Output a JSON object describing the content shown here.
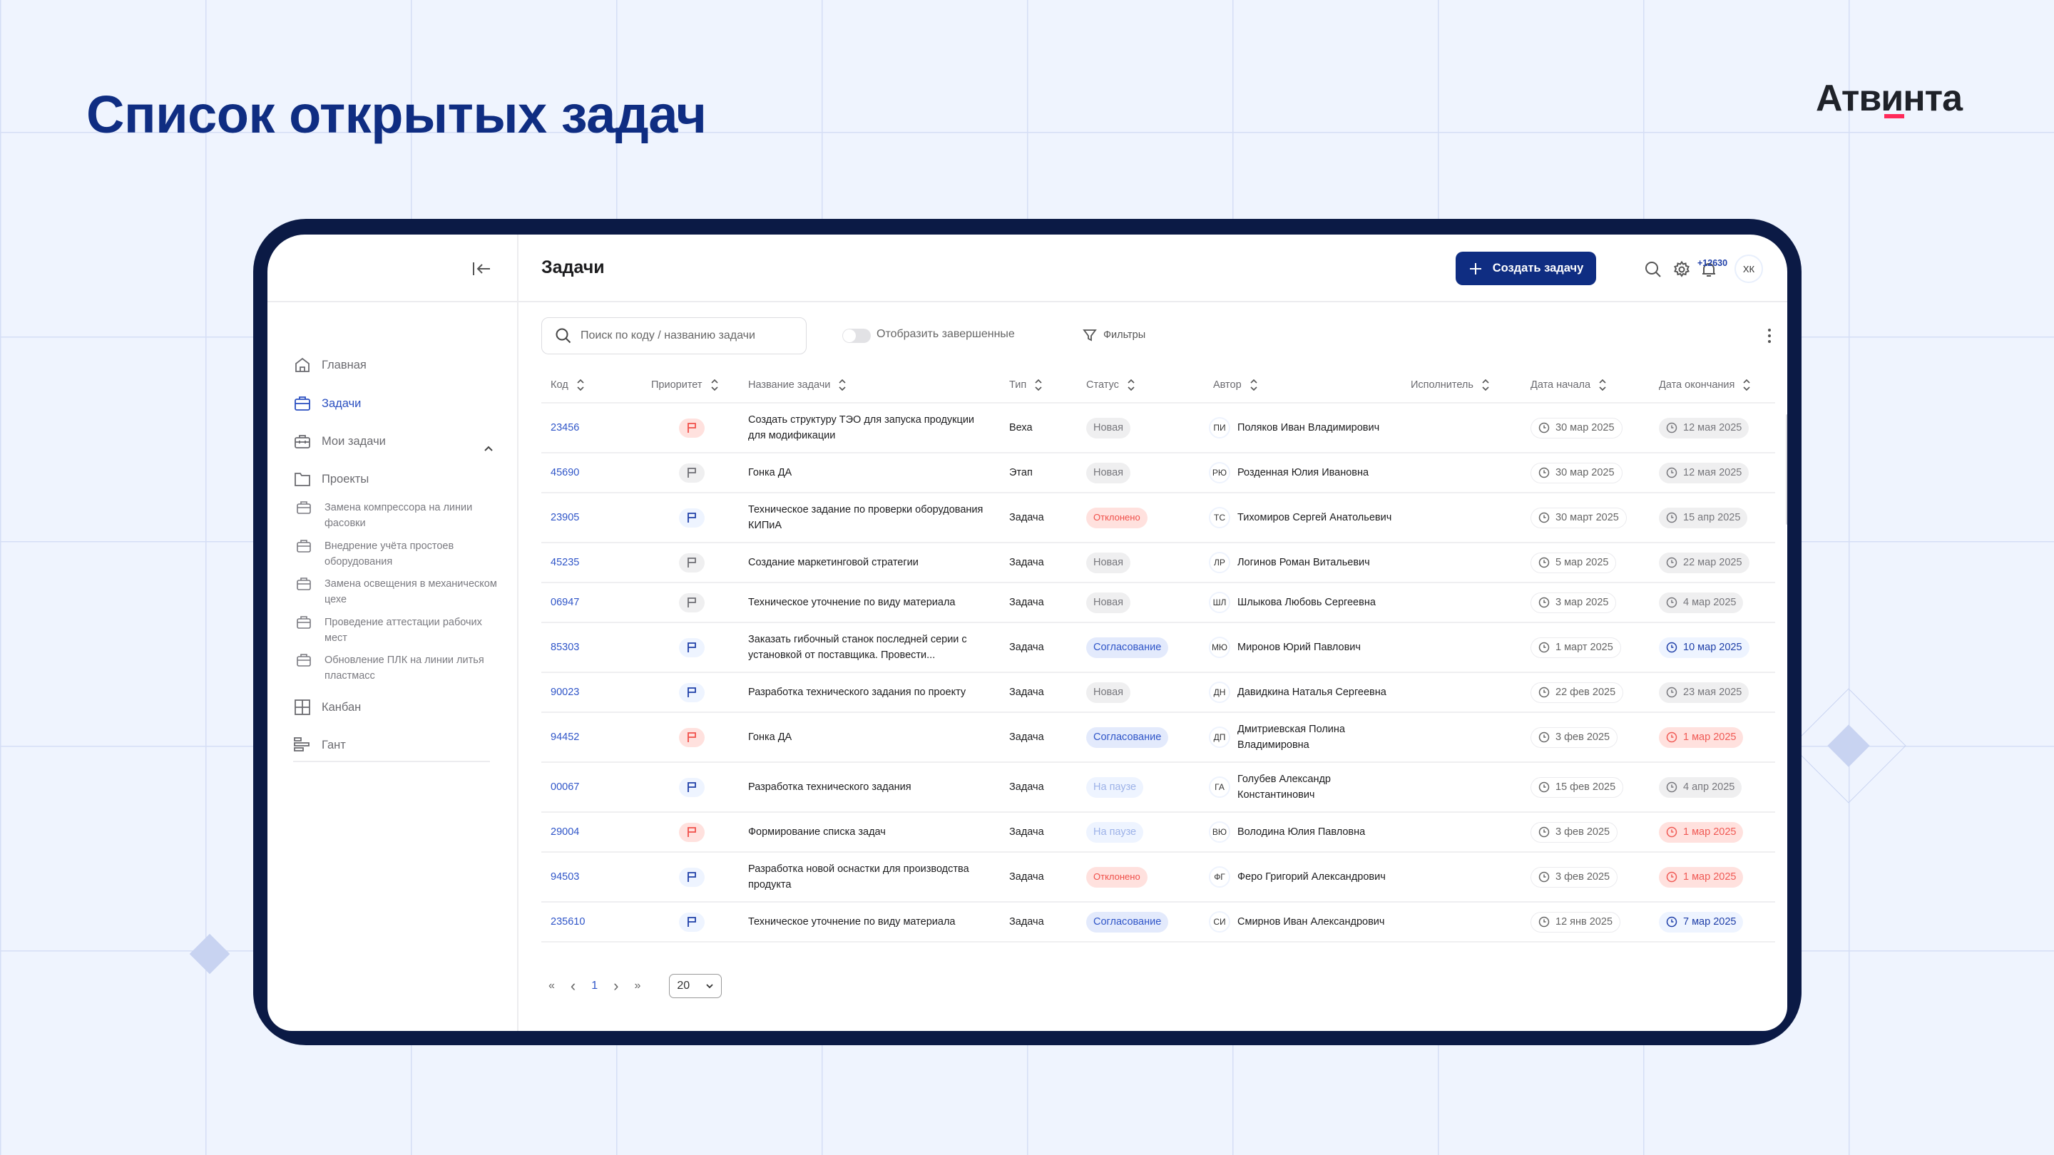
{
  "page": {
    "title": "Список открытых задач",
    "logo_text": "Атвинта"
  },
  "colors": {
    "brand_navy": "#0f2d82",
    "link_blue": "#2f55c8",
    "logo_accent": "#ff2a5a",
    "frame": "#0b1a45"
  },
  "sidebar": {
    "collapse_icon": "collapse-left-icon",
    "items": [
      {
        "label": "Главная",
        "icon": "home-icon"
      },
      {
        "label": "Задачи",
        "icon": "briefcase-icon",
        "active": true
      },
      {
        "label": "Мои задачи",
        "icon": "toolbox-icon"
      },
      {
        "label": "Проекты",
        "icon": "folder-icon",
        "expanded": true
      },
      {
        "label": "Канбан",
        "icon": "kanban-icon"
      },
      {
        "label": "Гант",
        "icon": "gantt-icon"
      }
    ],
    "projects": [
      "Замена компрессора на линии фасовки",
      "Внедрение учёта простоев оборудования",
      "Замена освещения в механическом цехе",
      "Проведение аттестации рабочих мест",
      "Обновление ПЛК на линии литья пластмасс"
    ]
  },
  "header": {
    "title": "Задачи",
    "create_label": "Создать задачу",
    "notifications_badge": "+12630",
    "avatar_initials": "ХК"
  },
  "toolbar": {
    "search_placeholder": "Поиск по коду / названию задачи",
    "toggle_label": "Отобразить завершенные",
    "toggle_on": false,
    "filters_label": "Фильтры"
  },
  "table": {
    "columns": [
      "Код",
      "Приоритет",
      "Название задачи",
      "Тип",
      "Статус",
      "Автор",
      "Исполнитель",
      "Дата начала",
      "Дата окончания"
    ],
    "rows": [
      {
        "code": "23456",
        "priority": "high",
        "name": "Создать структуру ТЭО для запуска продукции для модификации",
        "type": "Веха",
        "status": "Новая",
        "status_kind": "new",
        "author_initials": "ПИ",
        "author": "Поляков Иван Владимирович",
        "executor": "",
        "start": "30 мар 2025",
        "end": "12 мая 2025",
        "end_kind": "normal"
      },
      {
        "code": "45690",
        "priority": "low",
        "name": "Гонка ДА",
        "type": "Этап",
        "status": "Новая",
        "status_kind": "new",
        "author_initials": "РЮ",
        "author": "Розденная Юлия Ивановна",
        "executor": "",
        "start": "30 мар 2025",
        "end": "12 мая 2025",
        "end_kind": "normal"
      },
      {
        "code": "23905",
        "priority": "medium",
        "name": "Техническое задание по проверки оборудования КИПиА",
        "type": "Задача",
        "status": "Отклонено",
        "status_kind": "rejected",
        "author_initials": "ТС",
        "author": "Тихомиров Сергей Анатольевич",
        "executor": "",
        "start": "30 март  2025",
        "end": "15 апр  2025",
        "end_kind": "normal"
      },
      {
        "code": "45235",
        "priority": "low",
        "name": "Создание маркетинговой стратегии",
        "type": "Задача",
        "status": "Новая",
        "status_kind": "new",
        "author_initials": "ЛР",
        "author": "Логинов Роман Витальевич",
        "executor": "",
        "start": "5 мар 2025",
        "end": "22 мар 2025",
        "end_kind": "normal"
      },
      {
        "code": "06947",
        "priority": "low",
        "name": "Техническое уточнение по виду материала",
        "type": "Задача",
        "status": "Новая",
        "status_kind": "new",
        "author_initials": "ШЛ",
        "author": "Шлыкова Любовь Сергеевна",
        "executor": "",
        "start": "3 мар 2025",
        "end": "4 мар 2025",
        "end_kind": "normal"
      },
      {
        "code": "85303",
        "priority": "medium",
        "name": "Заказать гибочный станок последней серии с установкой от поставщика. Провести...",
        "type": "Задача",
        "status": "Согласование",
        "status_kind": "approval",
        "author_initials": "МЮ",
        "author": "Миронов Юрий Павлович",
        "executor": "",
        "start": "1 март  2025",
        "end": "10 мар 2025",
        "end_kind": "soon"
      },
      {
        "code": "90023",
        "priority": "medium",
        "name": "Разработка технического задания по проекту",
        "type": "Задача",
        "status": "Новая",
        "status_kind": "new",
        "author_initials": "ДН",
        "author": "Давидкина Наталья Сергеевна",
        "executor": "",
        "start": "22 фев 2025",
        "end": "23 мая 2025",
        "end_kind": "normal"
      },
      {
        "code": "94452",
        "priority": "high",
        "name": "Гонка ДА",
        "type": "Задача",
        "status": "Согласование",
        "status_kind": "approval",
        "author_initials": "ДП",
        "author": "Дмитриевская Полина Владимировна",
        "executor": "",
        "start": "3 фев 2025",
        "end": "1 мар 2025",
        "end_kind": "overdue"
      },
      {
        "code": "00067",
        "priority": "medium",
        "name": "Разработка технического задания",
        "type": "Задача",
        "status": "На паузе",
        "status_kind": "paused",
        "author_initials": "ГА",
        "author": "Голубев Александр Константинович",
        "executor": "",
        "start": "15 фев 2025",
        "end": "4 апр 2025",
        "end_kind": "normal"
      },
      {
        "code": "29004",
        "priority": "high",
        "name": "Формирование списка задач",
        "type": "Задача",
        "status": "На паузе",
        "status_kind": "paused",
        "author_initials": "ВЮ",
        "author": "Володина Юлия Павловна",
        "executor": "",
        "start": "3 фев 2025",
        "end": "1 мар 2025",
        "end_kind": "overdue"
      },
      {
        "code": "94503",
        "priority": "medium",
        "name": "Разработка новой оснастки для производства продукта",
        "type": "Задача",
        "status": "Отклонено",
        "status_kind": "rejected",
        "author_initials": "ФГ",
        "author": "Феро Григорий Александрович",
        "executor": "",
        "start": "3 фев 2025",
        "end": "1 мар 2025",
        "end_kind": "overdue"
      },
      {
        "code": "235610",
        "priority": "medium",
        "name": "Техническое уточнение по виду материала",
        "type": "Задача",
        "status": "Согласование",
        "status_kind": "approval",
        "author_initials": "СИ",
        "author": "Смирнов Иван Александрович",
        "executor": "",
        "start": "12 янв 2025",
        "end": "7 мар 2025",
        "end_kind": "soon"
      }
    ]
  },
  "pagination": {
    "first": "«",
    "prev": "‹",
    "current_page": "1",
    "next": "›",
    "last": "»",
    "page_size": "20"
  }
}
